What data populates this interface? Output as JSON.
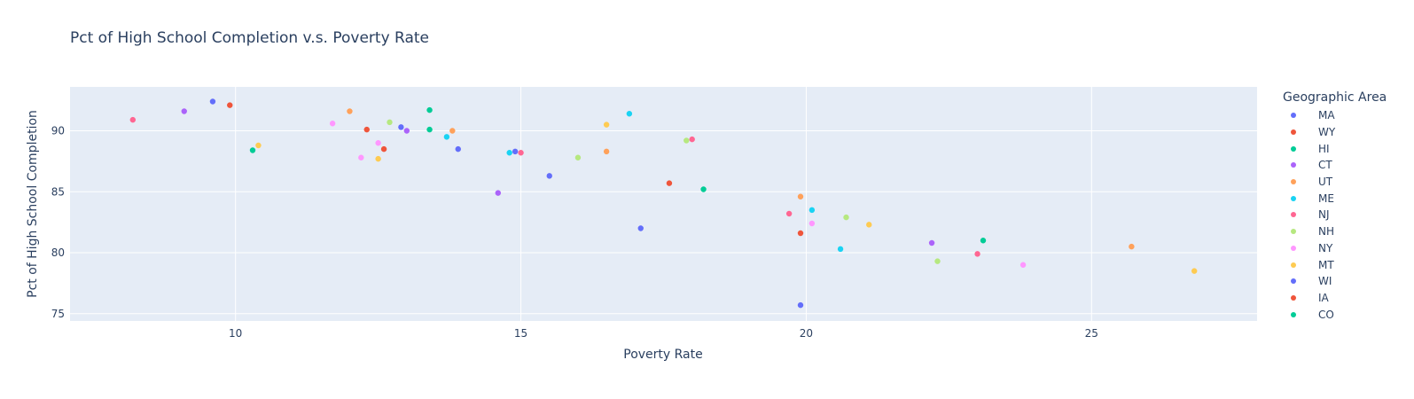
{
  "title": "Pct of High School Completion v.s. Poverty Rate",
  "chart_data": {
    "type": "scatter",
    "title": "Pct of High School Completion v.s. Poverty Rate",
    "xlabel": "Poverty Rate",
    "ylabel": "Pct of High School Completion",
    "xlim": [
      7.1,
      27.9
    ],
    "ylim": [
      74.4,
      93.6
    ],
    "xticks": [
      10,
      15,
      20,
      25
    ],
    "yticks": [
      75,
      80,
      85,
      90
    ],
    "grid": true,
    "legend": {
      "title": "Geographic Area",
      "placement": "right"
    },
    "series": [
      {
        "name": "MA",
        "color": "#636efa",
        "points": [
          [
            9.6,
            92.4
          ],
          [
            12.9,
            90.3
          ],
          [
            15.5,
            86.3
          ],
          [
            17.1,
            82.0
          ],
          [
            19.9,
            75.7
          ]
        ]
      },
      {
        "name": "WY",
        "color": "#EF553B",
        "points": [
          [
            9.9,
            92.1
          ],
          [
            12.3,
            90.1
          ],
          [
            17.6,
            85.7
          ],
          [
            19.9,
            81.6
          ]
        ]
      },
      {
        "name": "HI",
        "color": "#00cc96",
        "points": [
          [
            13.4,
            91.7
          ],
          [
            13.4,
            90.1
          ],
          [
            18.2,
            85.2
          ],
          [
            23.1,
            81.0
          ]
        ]
      },
      {
        "name": "CT",
        "color": "#ab63fa",
        "points": [
          [
            9.1,
            91.6
          ],
          [
            13.0,
            90.0
          ],
          [
            14.6,
            84.9
          ],
          [
            22.2,
            80.8
          ]
        ]
      },
      {
        "name": "UT",
        "color": "#FFA15A",
        "points": [
          [
            12.0,
            91.6
          ],
          [
            13.8,
            90.0
          ],
          [
            16.5,
            88.3
          ],
          [
            19.9,
            84.6
          ],
          [
            25.7,
            80.5
          ]
        ]
      },
      {
        "name": "ME",
        "color": "#19d3f3",
        "points": [
          [
            16.9,
            91.4
          ],
          [
            13.7,
            89.5
          ],
          [
            14.8,
            88.2
          ],
          [
            20.1,
            83.5
          ],
          [
            20.6,
            80.3
          ]
        ]
      },
      {
        "name": "NJ",
        "color": "#FF6692",
        "points": [
          [
            8.2,
            90.9
          ],
          [
            18.0,
            89.3
          ],
          [
            15.0,
            88.2
          ],
          [
            19.7,
            83.2
          ],
          [
            23.0,
            79.9
          ]
        ]
      },
      {
        "name": "NH",
        "color": "#B6E880",
        "points": [
          [
            12.7,
            90.7
          ],
          [
            17.9,
            89.2
          ],
          [
            16.0,
            87.8
          ],
          [
            20.7,
            82.9
          ],
          [
            22.3,
            79.3
          ]
        ]
      },
      {
        "name": "NY",
        "color": "#FF97FF",
        "points": [
          [
            11.7,
            90.6
          ],
          [
            12.5,
            89.0
          ],
          [
            12.2,
            87.8
          ],
          [
            20.1,
            82.4
          ],
          [
            23.8,
            79.0
          ]
        ]
      },
      {
        "name": "MT",
        "color": "#FECB52",
        "points": [
          [
            16.5,
            90.5
          ],
          [
            10.4,
            88.8
          ],
          [
            12.5,
            87.7
          ],
          [
            21.1,
            82.3
          ],
          [
            26.8,
            78.5
          ]
        ]
      },
      {
        "name": "WI",
        "color": "#636efa",
        "points": [
          [
            14.9,
            88.3
          ],
          [
            13.9,
            88.5
          ]
        ]
      },
      {
        "name": "IA",
        "color": "#EF553B",
        "points": [
          [
            12.6,
            88.5
          ]
        ]
      },
      {
        "name": "CO",
        "color": "#00cc96",
        "points": [
          [
            10.3,
            88.4
          ]
        ]
      }
    ]
  }
}
